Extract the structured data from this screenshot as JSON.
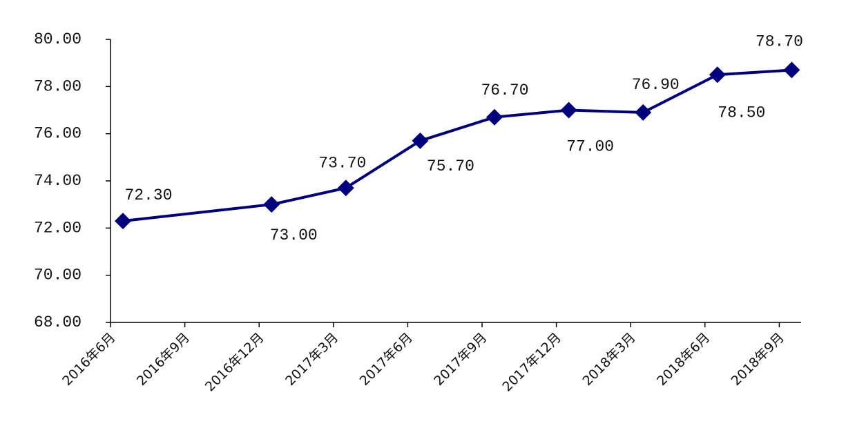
{
  "chart_data": {
    "type": "line",
    "categories": [
      "2016年6月",
      "2016年9月",
      "2016年12月",
      "2017年3月",
      "2017年6月",
      "2017年9月",
      "2017年12月",
      "2018年3月",
      "2018年6月",
      "2018年9月"
    ],
    "series": [
      {
        "color": "#00007f",
        "values": [
          72.3,
          null,
          73.0,
          73.7,
          75.7,
          76.7,
          77.0,
          76.9,
          78.5,
          78.7
        ],
        "value_labels": [
          "72.30",
          null,
          "73.00",
          "73.70",
          "75.70",
          "76.70",
          "77.00",
          "76.90",
          "78.50",
          "78.70"
        ]
      }
    ],
    "ylim": [
      68,
      80
    ],
    "yticks": [
      {
        "value": 68,
        "label": "68.00"
      },
      {
        "value": 70,
        "label": "70.00"
      },
      {
        "value": 72,
        "label": "72.00"
      },
      {
        "value": 74,
        "label": "74.00"
      },
      {
        "value": 76,
        "label": "76.00"
      },
      {
        "value": 78,
        "label": "78.00"
      },
      {
        "value": 80,
        "label": "80.00"
      }
    ],
    "grid": false
  }
}
